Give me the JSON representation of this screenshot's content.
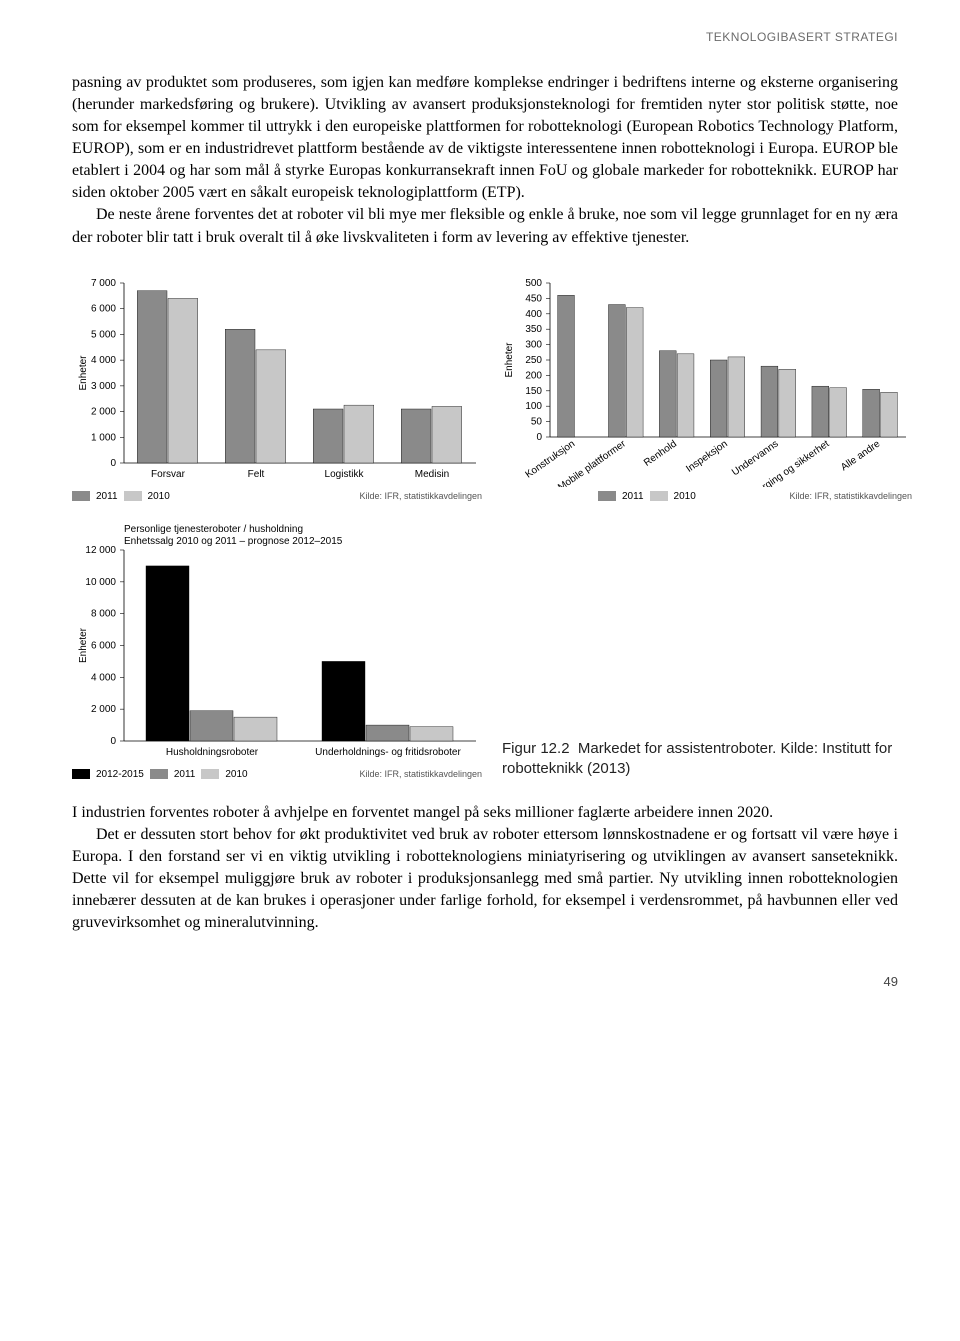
{
  "header": "TEKNOLOGIBASERT STRATEGI",
  "para1": "pasning av produktet som produseres, som igjen kan medføre komplekse endringer i bedriftens interne og eksterne organisering (herunder markedsføring og brukere). Utvikling av avansert produksjonsteknologi for fremtiden nyter stor politisk støtte, noe som for eksempel kommer til uttrykk i den europeiske plattformen for robotteknologi (European Robotics Technology Platform, EUROP), som er en industridrevet plattform bestående av de viktigste interessentene innen robotteknologi i Europa. EUROP ble etablert i 2004 og har som mål å styrke Europas konkurransekraft innen FoU og globale markeder for robotteknikk. EUROP har siden oktober 2005 vært en såkalt europeisk teknologiplattform (ETP).",
  "para2": "De neste årene forventes det at roboter vil bli mye mer fleksible og enkle å bruke, noe som vil legge grunnlaget for en ny æra der roboter blir tatt i bruk overalt til å øke livskvaliteten i form av levering av effektive tjenester.",
  "para3": "I industrien forventes roboter å avhjelpe en forventet mangel på seks millioner faglærte arbeidere innen 2020.",
  "para4": "Det er dessuten stort behov for økt produktivitet ved bruk av roboter ettersom lønnskostnadene er og fortsatt vil være høye i Europa. I den forstand ser vi en viktig utvikling i robotteknologiens miniatyrisering og utviklingen av avansert sanseteknikk. Dette vil for eksempel muliggjøre bruk av roboter i produksjonsanlegg med små partier. Ny utvikling innen robotteknologien innebærer dessuten at de kan brukes i operasjoner under farlige forhold, for eksempel i verdensrommet, på havbunnen eller ved gruvevirksomhet og mineralutvinning.",
  "source_label": "Kilde: IFR, statistikkavdelingen",
  "legend": {
    "y2011": "2011",
    "y2010": "2010",
    "y20122015": "2012-2015"
  },
  "colors": {
    "dark": "#8a8a8a",
    "light": "#c7c7c7",
    "black": "#000000",
    "midgrey": "#8a8a8a",
    "lightgrey": "#c7c7c7",
    "axis": "#000000",
    "grid": "#000000",
    "bg": "#ffffff"
  },
  "chart1": {
    "type": "bar",
    "ylabel": "Enheter",
    "ymax": 7000,
    "ystep": 1000,
    "yticks": [
      0,
      1000,
      2000,
      3000,
      4000,
      5000,
      6000,
      7000
    ],
    "ytick_labels": [
      "0",
      "1 000",
      "2 000",
      "3 000",
      "4 000",
      "5 000",
      "6 000",
      "7 000"
    ],
    "categories": [
      "Forsvar",
      "Felt",
      "Logistikk",
      "Medisin"
    ],
    "series": [
      {
        "name": "2011",
        "color": "#8a8a8a",
        "values": [
          6700,
          5200,
          2100,
          2100
        ]
      },
      {
        "name": "2010",
        "color": "#c7c7c7",
        "values": [
          6400,
          4400,
          2250,
          2200
        ]
      }
    ],
    "bar_width": 0.35
  },
  "chart2": {
    "type": "bar",
    "ylabel": "Enheter",
    "ymax": 500,
    "ystep": 50,
    "yticks": [
      0,
      50,
      100,
      150,
      200,
      250,
      300,
      350,
      400,
      450,
      500
    ],
    "ytick_labels": [
      "0",
      "50",
      "100",
      "150",
      "200",
      "250",
      "300",
      "350",
      "400",
      "450",
      "500"
    ],
    "categories": [
      "Konstruksjon",
      "Mobile plattformer",
      "Renhold",
      "Inspeksjon",
      "Undervanns",
      "Berging og sikkerhet",
      "Alle andre"
    ],
    "series": [
      {
        "name": "2011",
        "color": "#8a8a8a",
        "values": [
          460,
          430,
          280,
          250,
          230,
          165,
          155
        ]
      },
      {
        "name": "2010",
        "color": "#c7c7c7",
        "values": [
          0,
          420,
          270,
          260,
          220,
          160,
          145
        ]
      }
    ],
    "bar_width": 0.35
  },
  "chart3": {
    "type": "bar",
    "title": "Personlige tjenesteroboter / husholdning\nEnhetssalg 2010 og 2011 – prognose 2012–2015",
    "ylabel": "Enheter",
    "ymax": 12000,
    "ystep": 2000,
    "yticks": [
      0,
      2000,
      4000,
      6000,
      8000,
      10000,
      12000
    ],
    "ytick_labels": [
      "0",
      "2 000",
      "4 000",
      "6 000",
      "8 000",
      "10 000",
      "12 000"
    ],
    "categories": [
      "Husholdningsroboter",
      "Underholdnings- og fritidsroboter"
    ],
    "series": [
      {
        "name": "2012-2015",
        "color": "#000000",
        "values": [
          11000,
          5000
        ]
      },
      {
        "name": "2011",
        "color": "#8a8a8a",
        "values": [
          1900,
          1000
        ]
      },
      {
        "name": "2010",
        "color": "#c7c7c7",
        "values": [
          1500,
          900
        ]
      }
    ],
    "bar_width": 0.25
  },
  "caption": {
    "fignum": "Figur 12.2",
    "text": "Markedet for assistentroboter. Kilde: Institutt for robotteknikk (2013)"
  },
  "page_number": "49"
}
